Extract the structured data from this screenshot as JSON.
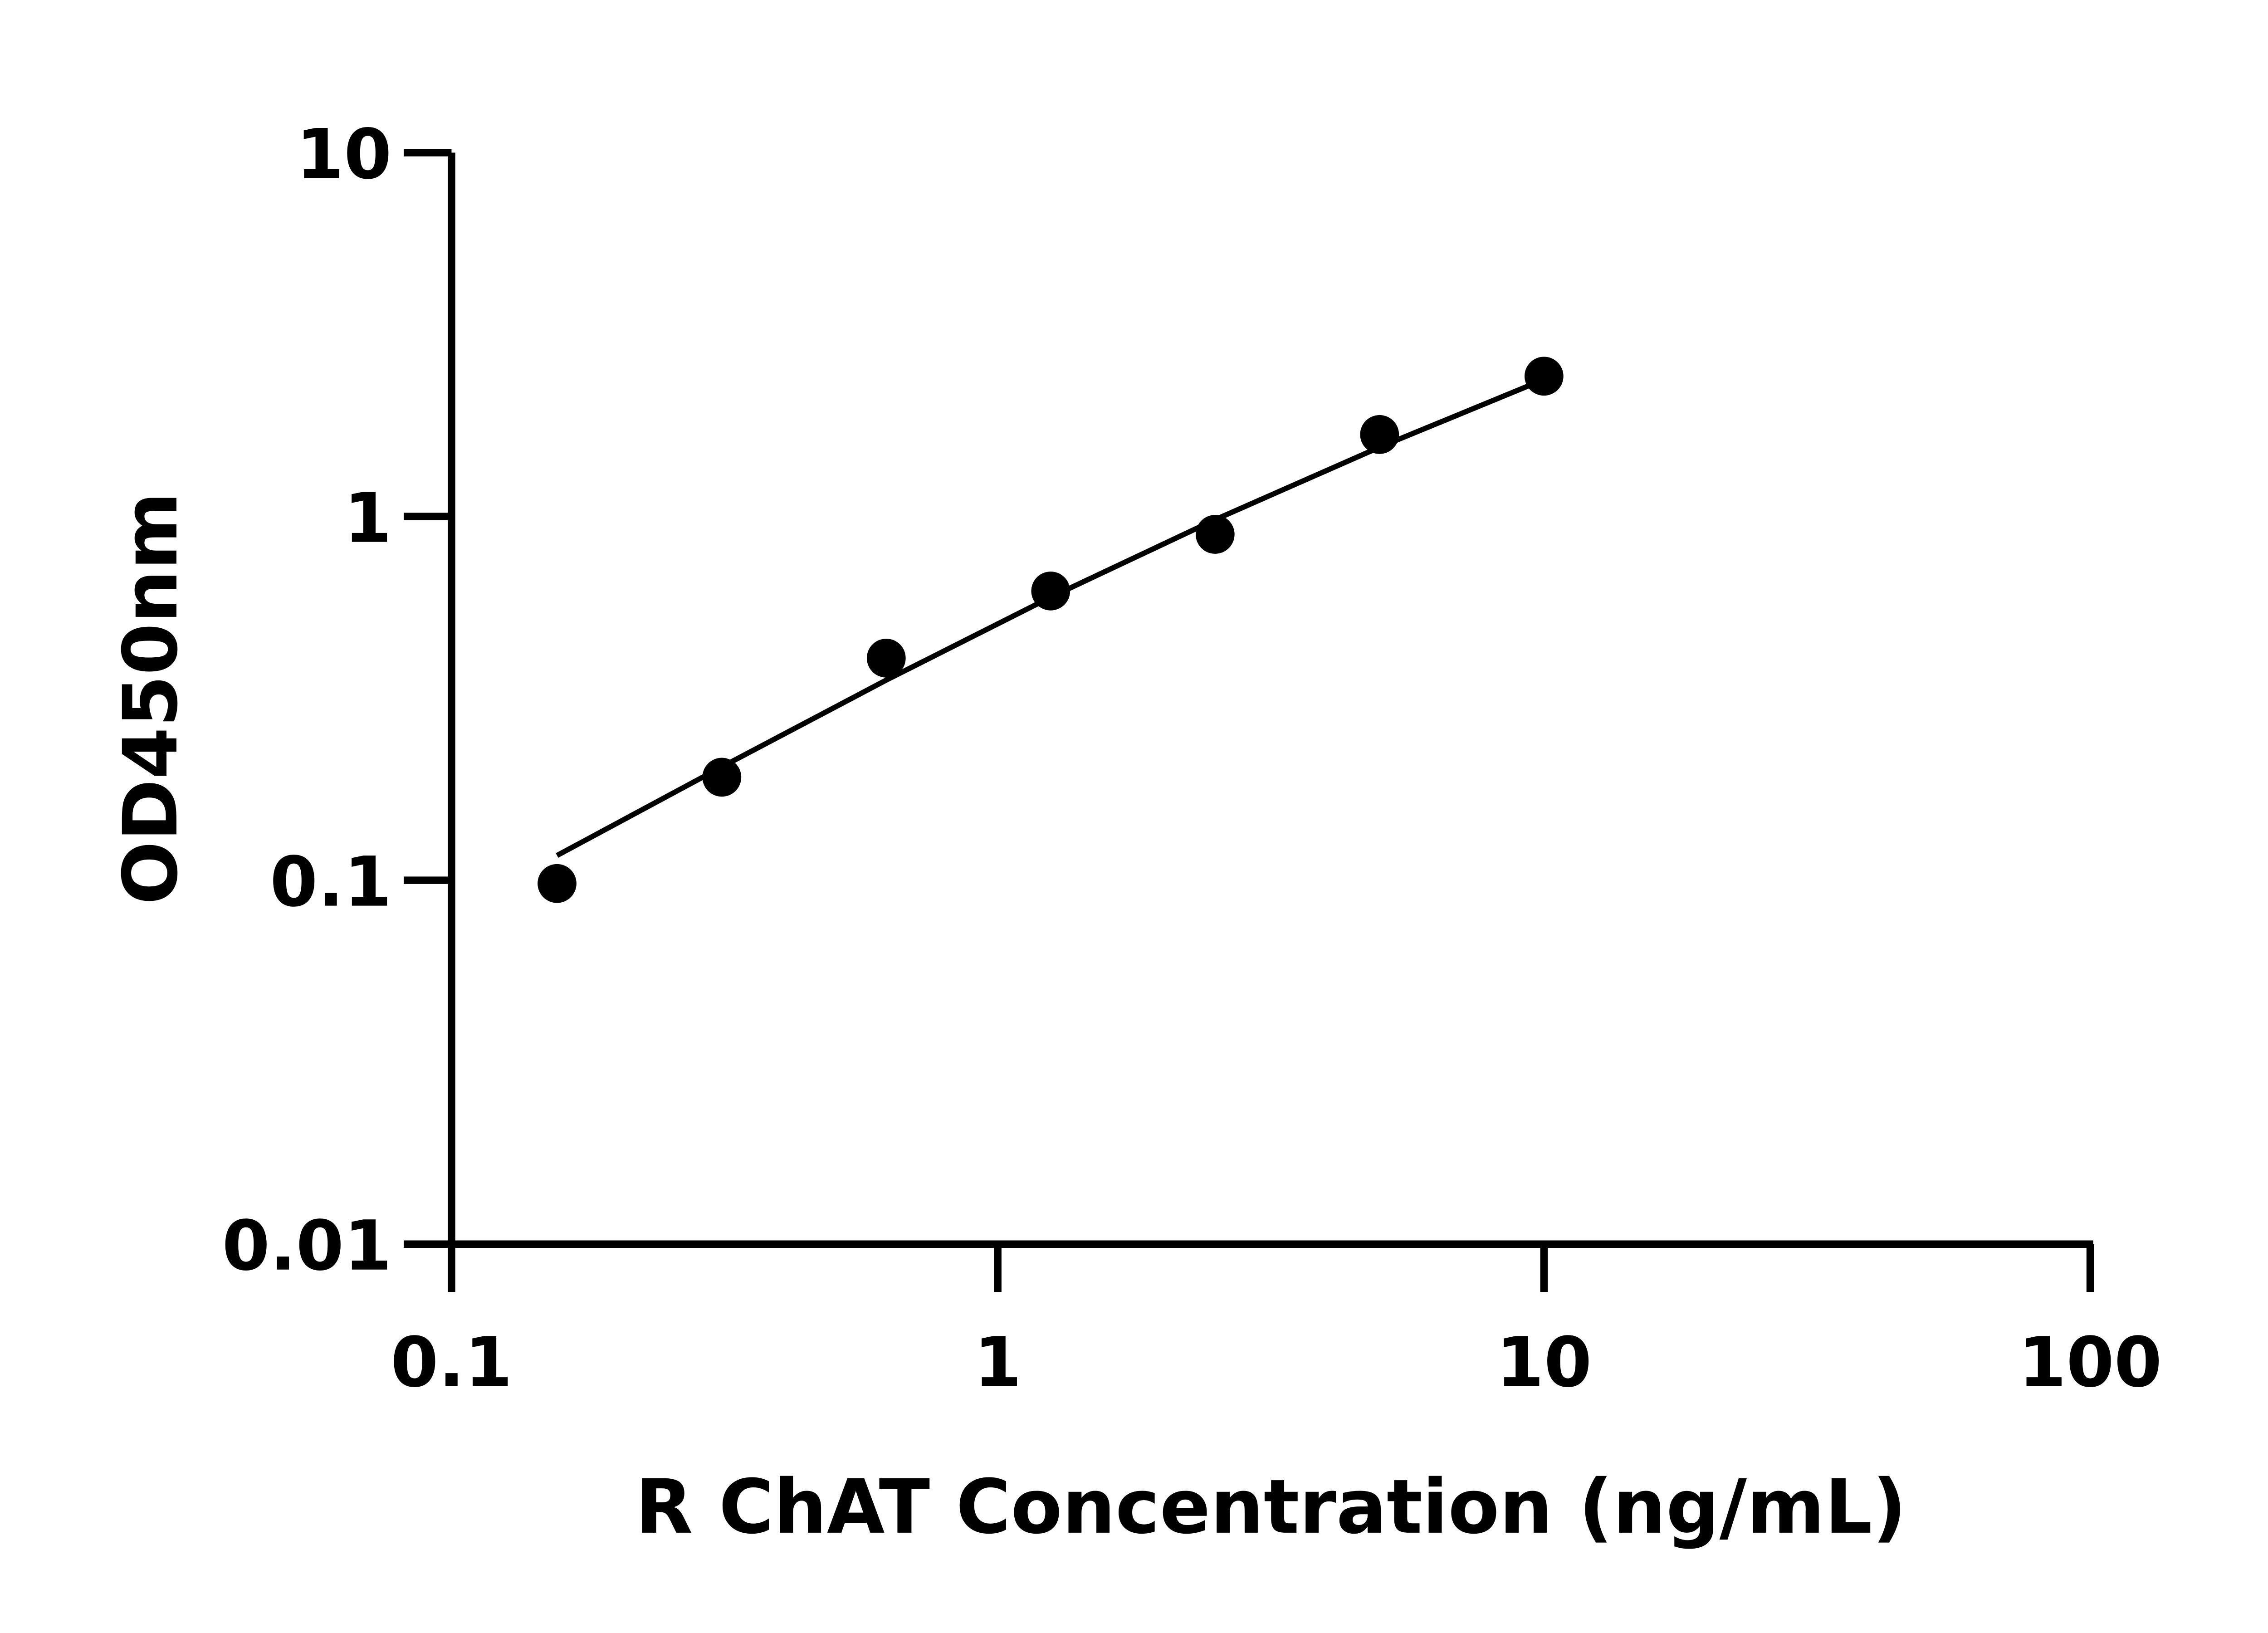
{
  "chart_data": {
    "type": "scatter",
    "title": "",
    "xlabel": "R ChAT Concentration (ng/mL)",
    "ylabel": "OD450nm",
    "xscale": "log",
    "yscale": "log",
    "xlim": [
      0.1,
      100
    ],
    "ylim": [
      0.01,
      10
    ],
    "xticks": [
      "0.1",
      "1",
      "10",
      "100"
    ],
    "yticks": [
      "0.01",
      "0.1",
      "1",
      "10"
    ],
    "grid": false,
    "color": "#000000",
    "points": {
      "x": [
        0.156,
        0.3125,
        0.625,
        1.25,
        2.5,
        5,
        10
      ],
      "y": [
        0.098,
        0.192,
        0.408,
        0.624,
        0.893,
        1.68,
        2.43
      ]
    },
    "fit_curve": {
      "x": [
        0.156,
        0.3125,
        0.625,
        1.25,
        2.5,
        5,
        10
      ],
      "y": [
        0.117,
        0.205,
        0.355,
        0.6,
        0.98,
        1.55,
        2.38
      ]
    }
  }
}
